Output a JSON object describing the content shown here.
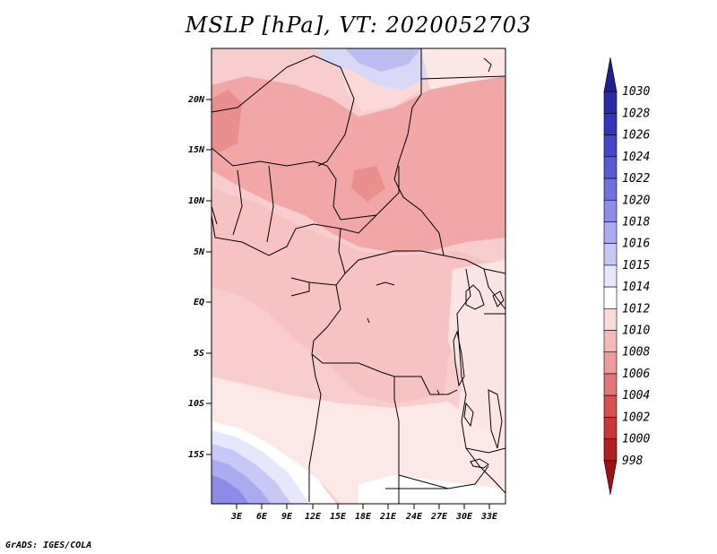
{
  "title": "MSLP [hPa], VT: 2020052703",
  "footer": "GrADS: IGES/COLA",
  "axes": {
    "lat_ticks": [
      "20N",
      "15N",
      "10N",
      "5N",
      "EQ",
      "5S",
      "10S",
      "15S"
    ],
    "lon_ticks": [
      "3E",
      "6E",
      "9E",
      "12E",
      "15E",
      "18E",
      "21E",
      "24E",
      "27E",
      "30E",
      "33E"
    ]
  },
  "colorbar": {
    "levels": [
      "1030",
      "1028",
      "1026",
      "1024",
      "1022",
      "1020",
      "1018",
      "1016",
      "1015",
      "1014",
      "1012",
      "1010",
      "1008",
      "1006",
      "1004",
      "1002",
      "1000",
      "998"
    ],
    "colors": [
      "#1f1f93",
      "#2a2aa8",
      "#3434bc",
      "#4646cc",
      "#5a5ad8",
      "#7070e0",
      "#8c8ce8",
      "#aaaaf0",
      "#c8c8f6",
      "#e6e6fc",
      "#ffffff",
      "#fbdada",
      "#f6b9b9",
      "#ee9b9b",
      "#e07676",
      "#d84f4f",
      "#c83636",
      "#b41f1f",
      "#9a1414"
    ]
  },
  "map": {
    "region": "Central Africa",
    "field": "Mean sea level pressure",
    "units": "hPa",
    "valid_time": "2020052703"
  }
}
